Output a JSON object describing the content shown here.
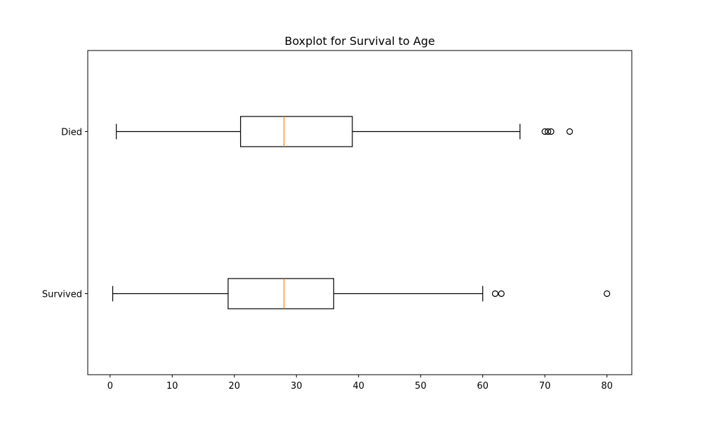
{
  "chart_data": {
    "type": "boxplot",
    "orientation": "horizontal",
    "title": "Boxplot for Survival to Age",
    "xlabel": "",
    "ylabel": "",
    "xlim": [
      -3.6,
      84.0
    ],
    "xticks": [
      0,
      10,
      20,
      30,
      40,
      50,
      60,
      70,
      80
    ],
    "grid": false,
    "categories": [
      "Survived",
      "Died"
    ],
    "boxes": [
      {
        "category": "Survived",
        "whisker_low": 0.42,
        "q1": 19,
        "median": 28,
        "q3": 36,
        "whisker_high": 60,
        "outliers": [
          62,
          63,
          80
        ]
      },
      {
        "category": "Died",
        "whisker_low": 1,
        "q1": 21,
        "median": 28,
        "q3": 39,
        "whisker_high": 66,
        "outliers": [
          70,
          70.5,
          71,
          74
        ]
      }
    ],
    "colors": {
      "box": "#000000",
      "median": "#ff7f0e",
      "whisker": "#000000",
      "flier": "#000000"
    }
  }
}
